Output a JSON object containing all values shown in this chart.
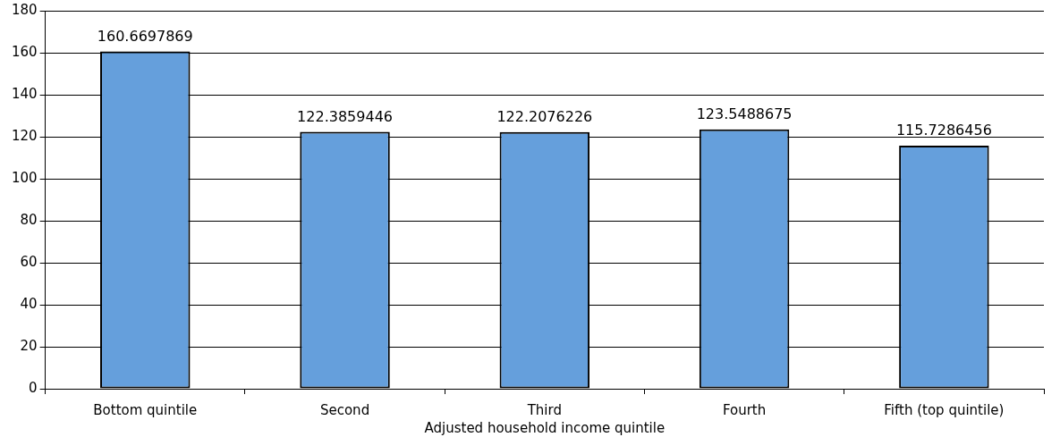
{
  "chart_data": {
    "type": "bar",
    "xlabel": "Adjusted household income quintile",
    "categories": [
      "Bottom quintile",
      "Second",
      "Third",
      "Fourth",
      "Fifth (top quintile)"
    ],
    "values": [
      160.6697869,
      122.3859446,
      122.2076226,
      123.5488675,
      115.7286456
    ],
    "color": "#659fdc",
    "ylim": [
      0,
      180
    ],
    "yticks": [
      0,
      20,
      40,
      60,
      80,
      100,
      120,
      140,
      160,
      180
    ],
    "grid": "y",
    "legend": false,
    "data_labels": true
  }
}
